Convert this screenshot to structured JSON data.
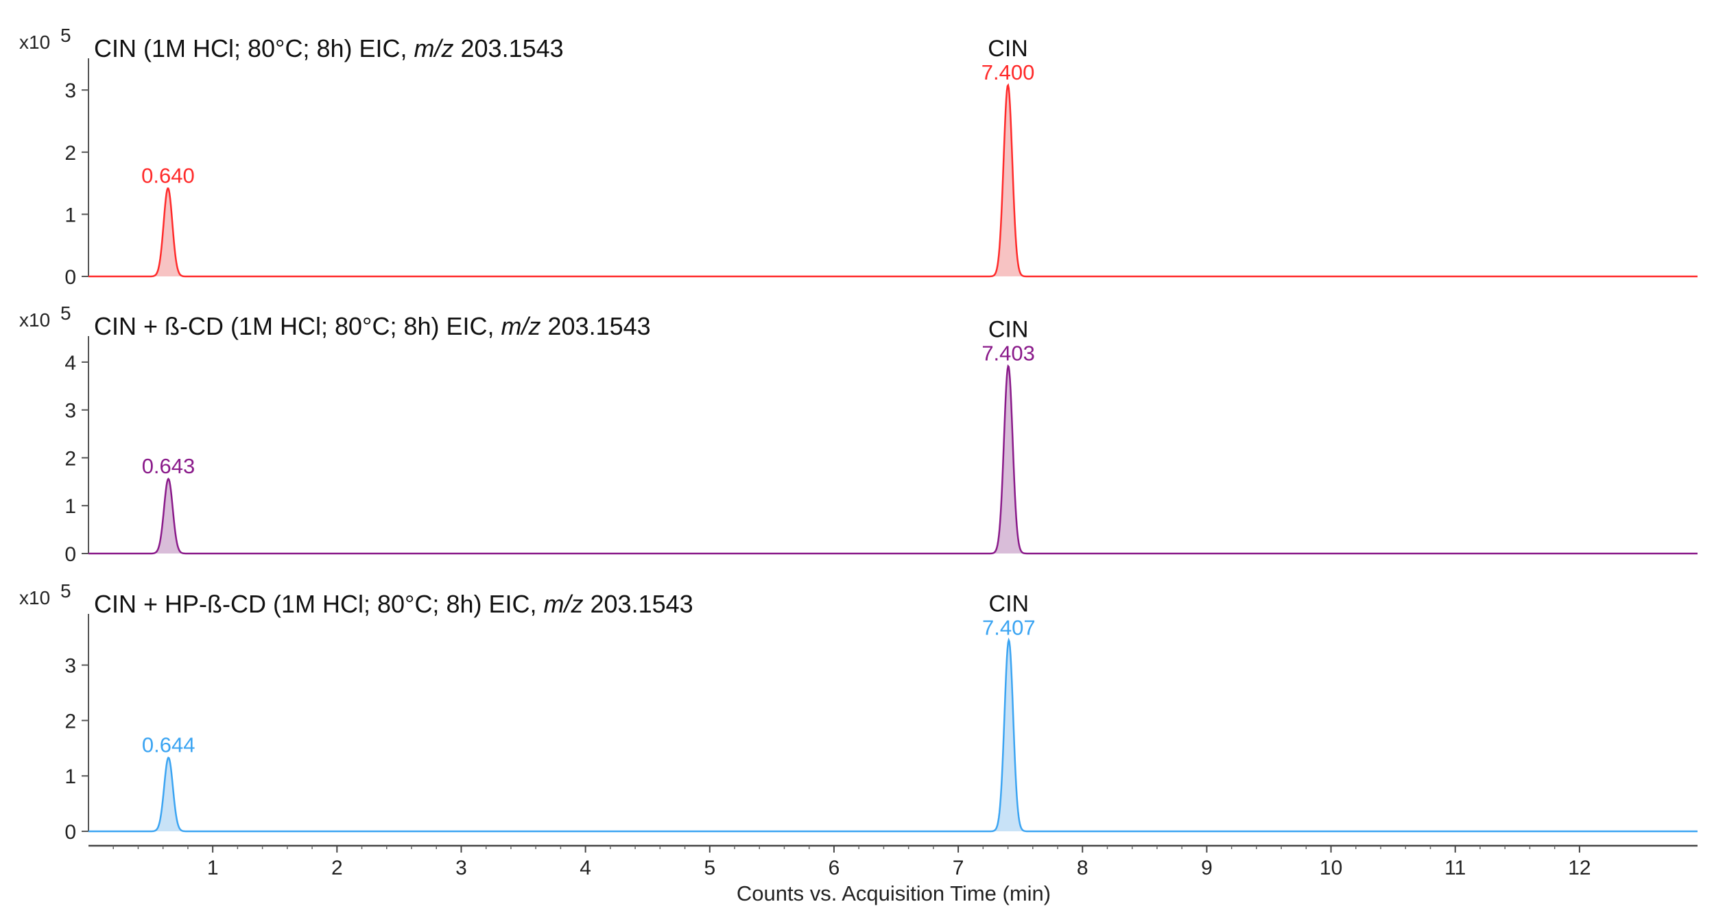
{
  "chart_data": [
    {
      "type": "line",
      "title_parts": [
        {
          "text": "CIN (1M HCl; 80°C; 8h) EIC, ",
          "italic": false
        },
        {
          "text": "m/z",
          "italic": true
        },
        {
          "text": " 203.1543",
          "italic": false
        }
      ],
      "scale_label": "x10",
      "scale_exp": "5",
      "color": "#ff2a2a",
      "fill": "#f7c3c3",
      "yticks": [
        0,
        1,
        2,
        3
      ],
      "ylim": [
        0,
        3.4
      ],
      "xlim": [
        0,
        12.95
      ],
      "baseline": 0,
      "peaks": [
        {
          "x": 0.64,
          "height": 1.42,
          "label": "0.640",
          "name": ""
        },
        {
          "x": 7.4,
          "height": 3.08,
          "label": "7.400",
          "name": "CIN"
        }
      ]
    },
    {
      "type": "line",
      "title_parts": [
        {
          "text": "CIN + ß-CD (1M HCl; 80°C; 8h) EIC, ",
          "italic": false
        },
        {
          "text": "m/z",
          "italic": true
        },
        {
          "text": " 203.1543",
          "italic": false
        }
      ],
      "scale_label": "x10",
      "scale_exp": "5",
      "color": "#8a1a8a",
      "fill": "#d9bdd9",
      "yticks": [
        0,
        1,
        2,
        3,
        4
      ],
      "ylim": [
        0,
        4.4
      ],
      "xlim": [
        0,
        12.95
      ],
      "baseline": 0,
      "peaks": [
        {
          "x": 0.643,
          "height": 1.56,
          "label": "0.643",
          "name": ""
        },
        {
          "x": 7.403,
          "height": 3.92,
          "label": "7.403",
          "name": "CIN"
        }
      ]
    },
    {
      "type": "line",
      "title_parts": [
        {
          "text": "CIN + HP-ß-CD (1M HCl; 80°C; 8h) EIC, ",
          "italic": false
        },
        {
          "text": "m/z",
          "italic": true
        },
        {
          "text": " 203.1543",
          "italic": false
        }
      ],
      "scale_label": "x10",
      "scale_exp": "5",
      "color": "#3ba4f2",
      "fill": "#c8e2f7",
      "yticks": [
        0,
        1,
        2,
        3
      ],
      "ylim": [
        0,
        3.8
      ],
      "xlim": [
        0,
        12.95
      ],
      "baseline": 0,
      "peaks": [
        {
          "x": 0.644,
          "height": 1.33,
          "label": "0.644",
          "name": ""
        },
        {
          "x": 7.407,
          "height": 3.45,
          "label": "7.407",
          "name": "CIN"
        }
      ]
    }
  ],
  "x_axis": {
    "ticks": [
      1,
      2,
      3,
      4,
      5,
      6,
      7,
      8,
      9,
      10,
      11,
      12
    ],
    "label": "Counts vs. Acquisition Time (min)"
  }
}
